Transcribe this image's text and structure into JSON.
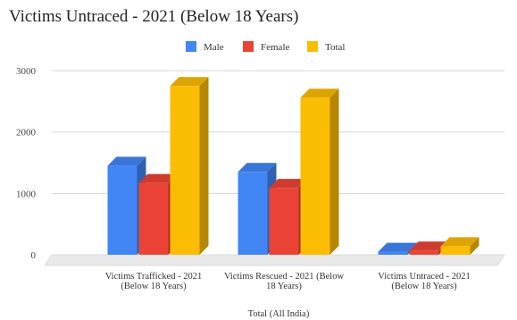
{
  "chart_data": {
    "type": "bar",
    "style": "3d-clustered-column",
    "title": "Victims Untraced - 2021 (Below 18 Years)",
    "xlabel": "Total (All India)",
    "ylabel": "",
    "ylim": [
      0,
      3000
    ],
    "yticks": [
      "0",
      "1000",
      "2000",
      "3000"
    ],
    "grid": true,
    "legend_position": "top",
    "categories": [
      [
        "Victims Trafficked - 2021",
        "(Below 18 Years)"
      ],
      [
        "Victims Rescued - 2021 (Below",
        "18 Years)"
      ],
      [
        "Victims Untraced - 2021",
        "(Below 18 Years)"
      ]
    ],
    "series": [
      {
        "name": "Male",
        "color": "#4285F4",
        "values": [
          1450,
          1350,
          50
        ]
      },
      {
        "name": "Female",
        "color": "#EA4335",
        "values": [
          1170,
          1090,
          70
        ]
      },
      {
        "name": "Total",
        "color": "#FBBC04",
        "values": [
          2750,
          2560,
          140
        ]
      }
    ]
  }
}
